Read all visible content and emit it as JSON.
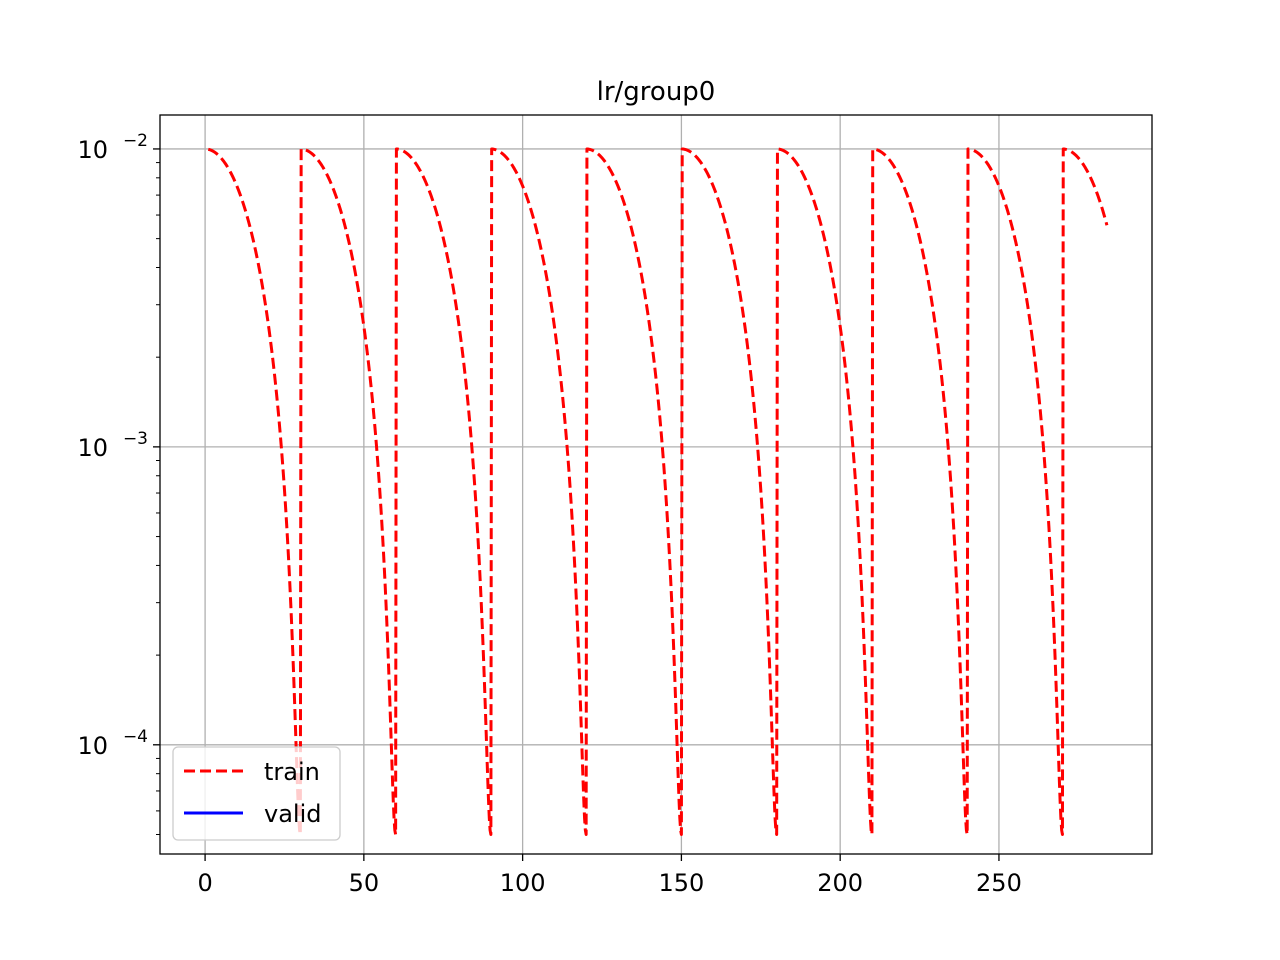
{
  "chart_data": {
    "type": "line",
    "title": "lr/group0",
    "xlabel": "",
    "ylabel": "",
    "xlim": [
      -14.2,
      298.2
    ],
    "ylim": [
      4.3e-05,
      0.013
    ],
    "yscale": "log",
    "grid": true,
    "legend_position": "lower left",
    "x_ticks": [
      {
        "value": 0,
        "label": "0"
      },
      {
        "value": 50,
        "label": "50"
      },
      {
        "value": 100,
        "label": "100"
      },
      {
        "value": 150,
        "label": "150"
      },
      {
        "value": 200,
        "label": "200"
      },
      {
        "value": 250,
        "label": "250"
      }
    ],
    "y_ticks": [
      {
        "value": 0.0001,
        "base": "10",
        "exp": "−4"
      },
      {
        "value": 0.001,
        "base": "10",
        "exp": "−3"
      },
      {
        "value": 0.01,
        "base": "10",
        "exp": "−2"
      }
    ],
    "schedule": {
      "lr_max": 0.01,
      "lr_min": 5e-05,
      "cycle_length": 30,
      "restart_offsets": [
        0,
        30,
        60,
        90,
        120,
        150,
        180,
        210,
        240,
        270
      ],
      "x_start": 1,
      "x_end": 284
    },
    "series": [
      {
        "name": "train",
        "color": "#ff0000",
        "linestyle": "dashed",
        "has_data": true
      },
      {
        "name": "valid",
        "color": "#0000ff",
        "linestyle": "solid",
        "has_data": false
      }
    ]
  }
}
